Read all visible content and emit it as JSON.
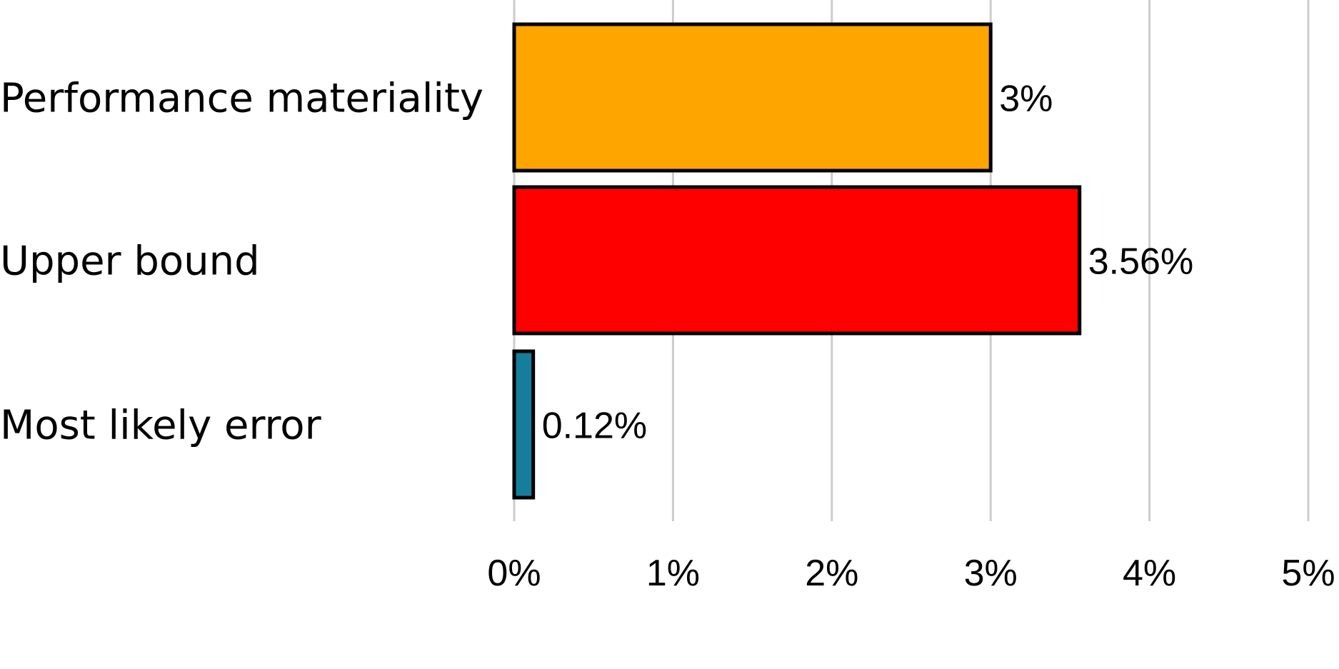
{
  "chart_data": {
    "type": "bar",
    "orientation": "horizontal",
    "title": "",
    "xlabel": "",
    "ylabel": "",
    "xlim": [
      0,
      5
    ],
    "x_ticks": [
      0,
      1,
      2,
      3,
      4,
      5
    ],
    "x_tick_labels": [
      "0%",
      "1%",
      "2%",
      "3%",
      "4%",
      "5%"
    ],
    "grid": "vertical",
    "legend": "none",
    "bars": [
      {
        "category": "Performance materiality",
        "value": 3.0,
        "label": "3%",
        "color": "#FFA500"
      },
      {
        "category": "Upper bound",
        "value": 3.56,
        "label": "3.56%",
        "color": "#FF0000"
      },
      {
        "category": "Most likely error",
        "value": 0.12,
        "label": "0.12%",
        "color": "#167E9C"
      }
    ]
  }
}
